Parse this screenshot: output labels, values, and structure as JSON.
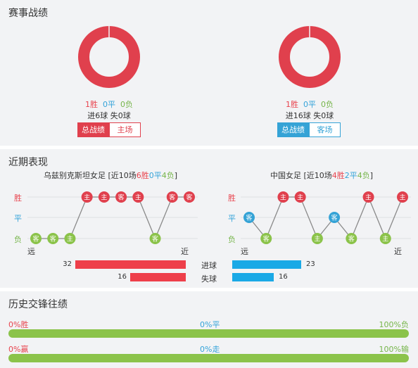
{
  "sections": {
    "record_title": "赛事战绩",
    "recent_title": "近期表现",
    "history_title": "历史交锋往绩"
  },
  "left_record": {
    "win": "1胜",
    "draw": "0平",
    "loss": "0负",
    "goals_line": "进6球  失0球",
    "tab_total": "总战绩",
    "tab_venue": "主场"
  },
  "right_record": {
    "win": "1胜",
    "draw": "0平",
    "loss": "0负",
    "goals_line": "进16球  失0球",
    "tab_total": "总战绩",
    "tab_venue": "客场"
  },
  "legend": {
    "win": "胜",
    "draw": "平",
    "loss": "负",
    "far": "远",
    "near": "近"
  },
  "left_team": {
    "prefix": "乌兹别克斯坦女足 [近10场",
    "w": "6胜",
    "d": "0平",
    "l": "4负",
    "suffix": "]",
    "games": [
      {
        "result": "L",
        "venue": "客"
      },
      {
        "result": "L",
        "venue": "客"
      },
      {
        "result": "L",
        "venue": "主"
      },
      {
        "result": "W",
        "venue": "主"
      },
      {
        "result": "W",
        "venue": "主"
      },
      {
        "result": "W",
        "venue": "客"
      },
      {
        "result": "W",
        "venue": "主"
      },
      {
        "result": "L",
        "venue": "客"
      },
      {
        "result": "W",
        "venue": "客"
      },
      {
        "result": "W",
        "venue": "客"
      }
    ]
  },
  "right_team": {
    "prefix": "中国女足 [近10场",
    "w": "4胜",
    "d": "2平",
    "l": "4负",
    "suffix": "]",
    "games": [
      {
        "result": "D",
        "venue": "客"
      },
      {
        "result": "L",
        "venue": "客"
      },
      {
        "result": "W",
        "venue": "主"
      },
      {
        "result": "W",
        "venue": "主"
      },
      {
        "result": "L",
        "venue": "主"
      },
      {
        "result": "D",
        "venue": "客"
      },
      {
        "result": "L",
        "venue": "客"
      },
      {
        "result": "W",
        "venue": "主"
      },
      {
        "result": "L",
        "venue": "主"
      },
      {
        "result": "W",
        "venue": "主"
      }
    ]
  },
  "goals": {
    "scored_label": "进球",
    "conceded_label": "失球",
    "left_scored": 32,
    "left_conceded": 16,
    "right_scored": 23,
    "right_conceded": 16,
    "max": 32
  },
  "history": {
    "row1": {
      "left": "0%胜",
      "mid": "0%平",
      "right": "100%负"
    },
    "row2": {
      "left": "0%赢",
      "mid": "0%走",
      "right": "100%输"
    }
  },
  "colors": {
    "red": "#e0404d",
    "blue": "#35a3d6",
    "green": "#8bc34a",
    "bar_red": "#ee3f4a",
    "bar_blue": "#1aa9e6",
    "panel_bg": "#f2f3f5"
  }
}
